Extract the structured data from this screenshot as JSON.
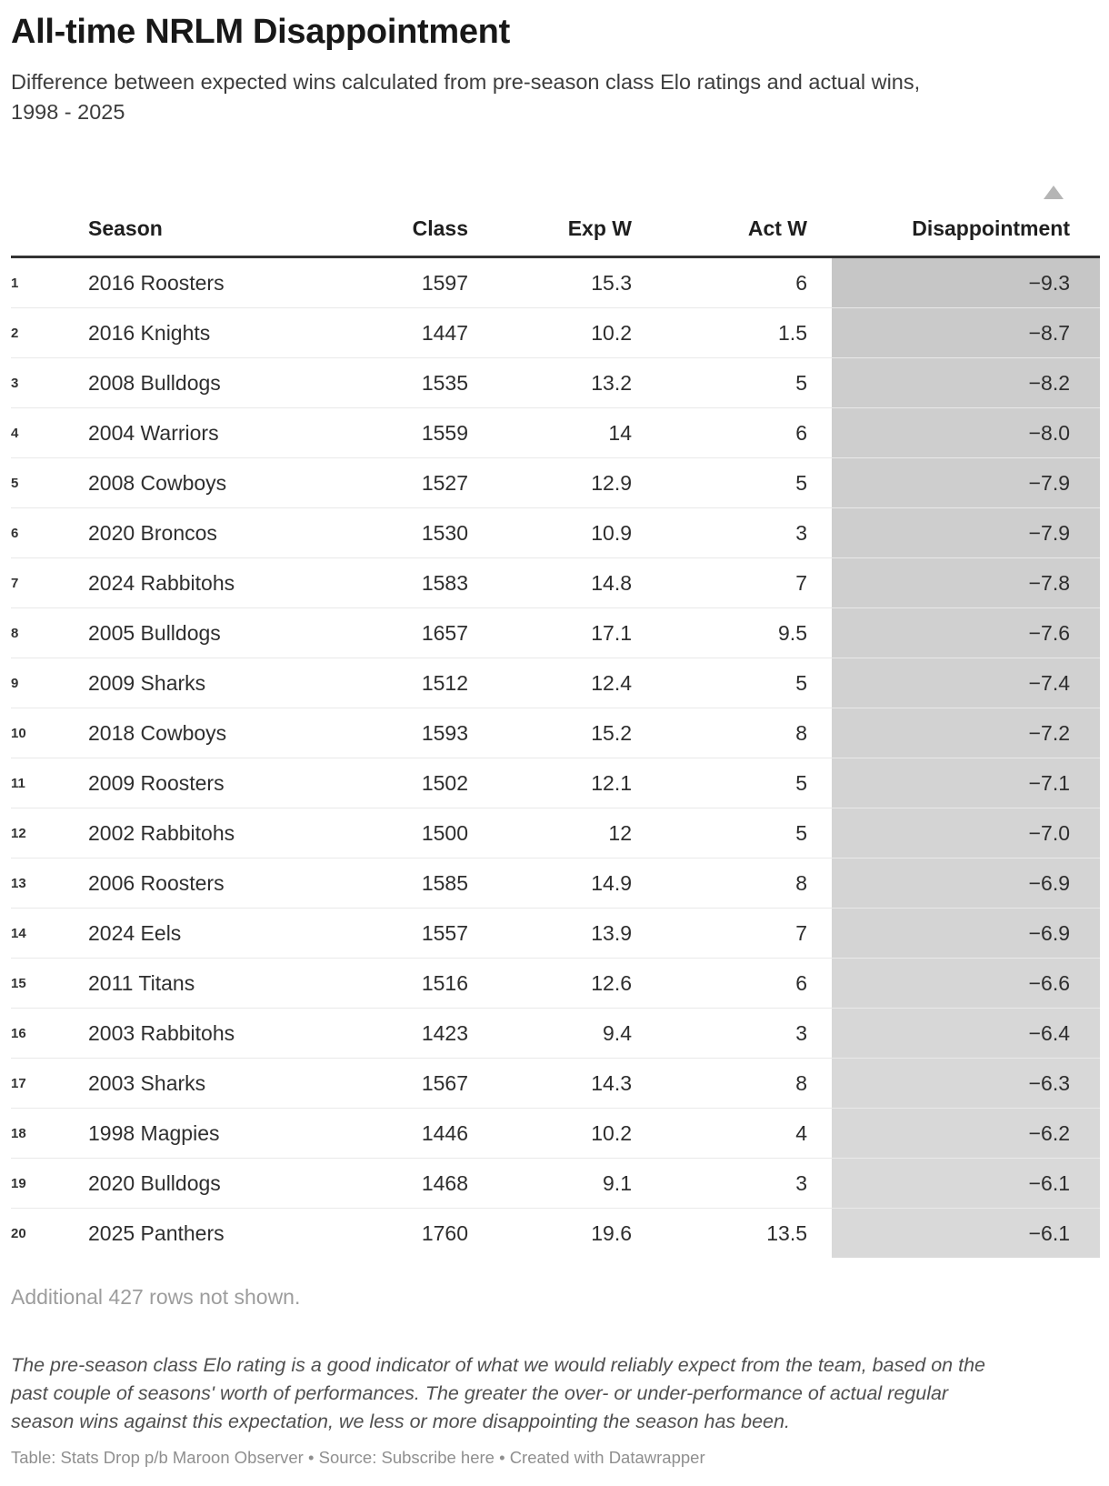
{
  "header": {
    "title": "All-time NRLM Disappointment",
    "subtitle": "Difference between expected wins calculated from pre-season class Elo ratings and actual wins,\n1998 - 2025"
  },
  "table": {
    "columns": [
      "Season",
      "Class",
      "Exp W",
      "Act W",
      "Disappointment"
    ],
    "sort": {
      "column": "Disappointment",
      "direction": "ascending",
      "icon": "triangle-up"
    },
    "heatmap": {
      "color_dark": "#c6c6c6",
      "color_light": "#d9d9d9",
      "domain_min": -9.3,
      "domain_max": -6.1
    },
    "rows": [
      {
        "rank": "1",
        "season": "2016 Roosters",
        "class": "1597",
        "exp_w": "15.3",
        "act_w": "6",
        "disappointment": "−9.3",
        "value": -9.3
      },
      {
        "rank": "2",
        "season": "2016 Knights",
        "class": "1447",
        "exp_w": "10.2",
        "act_w": "1.5",
        "disappointment": "−8.7",
        "value": -8.7
      },
      {
        "rank": "3",
        "season": "2008 Bulldogs",
        "class": "1535",
        "exp_w": "13.2",
        "act_w": "5",
        "disappointment": "−8.2",
        "value": -8.2
      },
      {
        "rank": "4",
        "season": "2004 Warriors",
        "class": "1559",
        "exp_w": "14",
        "act_w": "6",
        "disappointment": "−8.0",
        "value": -8.0
      },
      {
        "rank": "5",
        "season": "2008 Cowboys",
        "class": "1527",
        "exp_w": "12.9",
        "act_w": "5",
        "disappointment": "−7.9",
        "value": -7.9
      },
      {
        "rank": "6",
        "season": "2020 Broncos",
        "class": "1530",
        "exp_w": "10.9",
        "act_w": "3",
        "disappointment": "−7.9",
        "value": -7.9
      },
      {
        "rank": "7",
        "season": "2024 Rabbitohs",
        "class": "1583",
        "exp_w": "14.8",
        "act_w": "7",
        "disappointment": "−7.8",
        "value": -7.8
      },
      {
        "rank": "8",
        "season": "2005 Bulldogs",
        "class": "1657",
        "exp_w": "17.1",
        "act_w": "9.5",
        "disappointment": "−7.6",
        "value": -7.6
      },
      {
        "rank": "9",
        "season": "2009 Sharks",
        "class": "1512",
        "exp_w": "12.4",
        "act_w": "5",
        "disappointment": "−7.4",
        "value": -7.4
      },
      {
        "rank": "10",
        "season": "2018 Cowboys",
        "class": "1593",
        "exp_w": "15.2",
        "act_w": "8",
        "disappointment": "−7.2",
        "value": -7.2
      },
      {
        "rank": "11",
        "season": "2009 Roosters",
        "class": "1502",
        "exp_w": "12.1",
        "act_w": "5",
        "disappointment": "−7.1",
        "value": -7.1
      },
      {
        "rank": "12",
        "season": "2002 Rabbitohs",
        "class": "1500",
        "exp_w": "12",
        "act_w": "5",
        "disappointment": "−7.0",
        "value": -7.0
      },
      {
        "rank": "13",
        "season": "2006 Roosters",
        "class": "1585",
        "exp_w": "14.9",
        "act_w": "8",
        "disappointment": "−6.9",
        "value": -6.9
      },
      {
        "rank": "14",
        "season": "2024 Eels",
        "class": "1557",
        "exp_w": "13.9",
        "act_w": "7",
        "disappointment": "−6.9",
        "value": -6.9
      },
      {
        "rank": "15",
        "season": "2011 Titans",
        "class": "1516",
        "exp_w": "12.6",
        "act_w": "6",
        "disappointment": "−6.6",
        "value": -6.6
      },
      {
        "rank": "16",
        "season": "2003 Rabbitohs",
        "class": "1423",
        "exp_w": "9.4",
        "act_w": "3",
        "disappointment": "−6.4",
        "value": -6.4
      },
      {
        "rank": "17",
        "season": "2003 Sharks",
        "class": "1567",
        "exp_w": "14.3",
        "act_w": "8",
        "disappointment": "−6.3",
        "value": -6.3
      },
      {
        "rank": "18",
        "season": "1998 Magpies",
        "class": "1446",
        "exp_w": "10.2",
        "act_w": "4",
        "disappointment": "−6.2",
        "value": -6.2
      },
      {
        "rank": "19",
        "season": "2020 Bulldogs",
        "class": "1468",
        "exp_w": "9.1",
        "act_w": "3",
        "disappointment": "−6.1",
        "value": -6.1
      },
      {
        "rank": "20",
        "season": "2025 Panthers",
        "class": "1760",
        "exp_w": "19.6",
        "act_w": "13.5",
        "disappointment": "−6.1",
        "value": -6.1
      }
    ]
  },
  "footer": {
    "more_rows": "Additional 427 rows not shown.",
    "note": "The pre-season class Elo rating is a good indicator of what we would reliably expect from the team, based on the\npast couple of seasons' worth of performances. The greater the over- or under-performance of actual regular\nseason wins against this expectation, we less or more disappointing the season has been.",
    "attribution": {
      "prefix": "Table: Stats Drop p/b Maroon Observer • Source: ",
      "link": "Subscribe here",
      "suffix": " • Created with Datawrapper"
    }
  },
  "chart_data": {
    "type": "table",
    "title": "All-time NRLM Disappointment",
    "subtitle": "Difference between expected wins calculated from pre-season class Elo ratings and actual wins, 1998 - 2025",
    "columns": [
      "Season",
      "Class",
      "Exp W",
      "Act W",
      "Disappointment"
    ],
    "rows": [
      [
        "2016 Roosters",
        1597,
        15.3,
        6,
        -9.3
      ],
      [
        "2016 Knights",
        1447,
        10.2,
        1.5,
        -8.7
      ],
      [
        "2008 Bulldogs",
        1535,
        13.2,
        5,
        -8.2
      ],
      [
        "2004 Warriors",
        1559,
        14,
        6,
        -8.0
      ],
      [
        "2008 Cowboys",
        1527,
        12.9,
        5,
        -7.9
      ],
      [
        "2020 Broncos",
        1530,
        10.9,
        3,
        -7.9
      ],
      [
        "2024 Rabbitohs",
        1583,
        14.8,
        7,
        -7.8
      ],
      [
        "2005 Bulldogs",
        1657,
        17.1,
        9.5,
        -7.6
      ],
      [
        "2009 Sharks",
        1512,
        12.4,
        5,
        -7.4
      ],
      [
        "2018 Cowboys",
        1593,
        15.2,
        8,
        -7.2
      ],
      [
        "2009 Roosters",
        1502,
        12.1,
        5,
        -7.1
      ],
      [
        "2002 Rabbitohs",
        1500,
        12,
        5,
        -7.0
      ],
      [
        "2006 Roosters",
        1585,
        14.9,
        8,
        -6.9
      ],
      [
        "2024 Eels",
        1557,
        13.9,
        7,
        -6.9
      ],
      [
        "2011 Titans",
        1516,
        12.6,
        6,
        -6.6
      ],
      [
        "2003 Rabbitohs",
        1423,
        9.4,
        3,
        -6.4
      ],
      [
        "2003 Sharks",
        1567,
        14.3,
        8,
        -6.3
      ],
      [
        "1998 Magpies",
        1446,
        10.2,
        4,
        -6.2
      ],
      [
        "2020 Bulldogs",
        1468,
        9.1,
        3,
        -6.1
      ],
      [
        "2025 Panthers",
        1760,
        19.6,
        13.5,
        -6.1
      ]
    ],
    "sorted_by": "Disappointment ascending",
    "heatmap_column": "Disappointment",
    "footnote": "Additional 427 rows not shown."
  }
}
